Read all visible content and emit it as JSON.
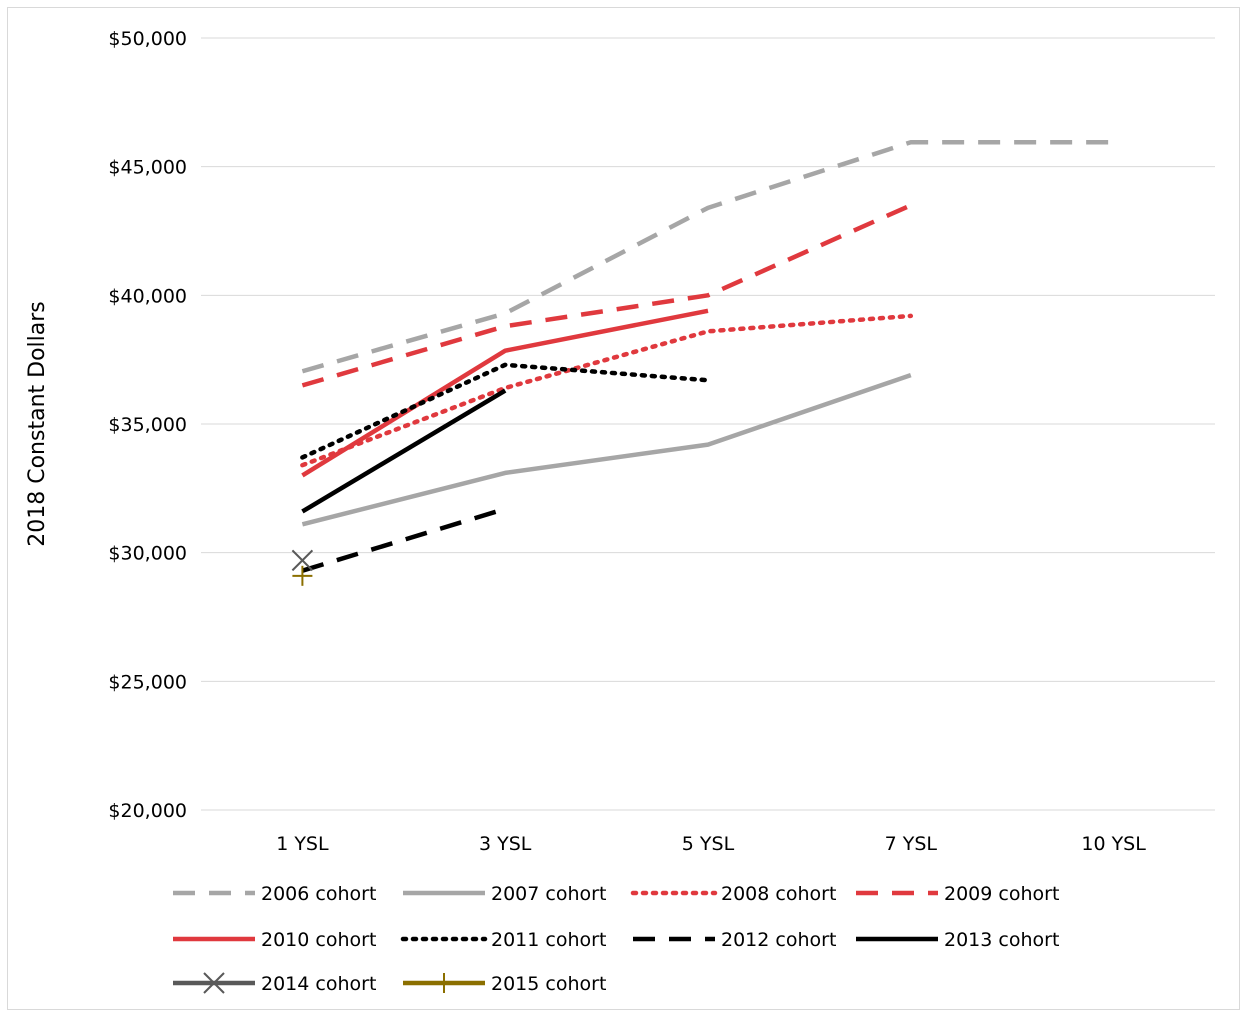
{
  "chart_data": {
    "type": "line",
    "title": "",
    "ylabel": "2018 Constant Dollars",
    "xlabel": "",
    "categories": [
      "1 YSL",
      "3 YSL",
      "5 YSL",
      "7 YSL",
      "10 YSL"
    ],
    "ylim": [
      20000,
      50000
    ],
    "yticks": [
      20000,
      25000,
      30000,
      35000,
      40000,
      45000,
      50000
    ],
    "ytick_labels": [
      "$20,000",
      "$25,000",
      "$30,000",
      "$35,000",
      "$40,000",
      "$45,000",
      "$50,000"
    ],
    "grid": true,
    "legend_position": "bottom",
    "series": [
      {
        "name": "2006 cohort",
        "values": [
          37050,
          39300,
          43400,
          45950,
          45950
        ],
        "color": "#a6a6a6",
        "style": "dashed"
      },
      {
        "name": "2007 cohort",
        "values": [
          31100,
          33100,
          34200,
          36900,
          null
        ],
        "color": "#a6a6a6",
        "style": "solid"
      },
      {
        "name": "2008 cohort",
        "values": [
          33400,
          36400,
          38600,
          39200,
          null
        ],
        "color": "#e0393e",
        "style": "dotted"
      },
      {
        "name": "2009 cohort",
        "values": [
          36500,
          38800,
          40000,
          43500,
          null
        ],
        "color": "#e0393e",
        "style": "dashed"
      },
      {
        "name": "2010 cohort",
        "values": [
          33000,
          37850,
          39400,
          null,
          null
        ],
        "color": "#e0393e",
        "style": "solid"
      },
      {
        "name": "2011 cohort",
        "values": [
          33700,
          37300,
          36700,
          null,
          null
        ],
        "color": "#000000",
        "style": "dotted"
      },
      {
        "name": "2012 cohort",
        "values": [
          29300,
          31700,
          null,
          null,
          null
        ],
        "color": "#000000",
        "style": "dashed"
      },
      {
        "name": "2013 cohort",
        "values": [
          31600,
          36300,
          null,
          null,
          null
        ],
        "color": "#000000",
        "style": "solid"
      },
      {
        "name": "2014 cohort",
        "values": [
          29700,
          null,
          null,
          null,
          null
        ],
        "color": "#595959",
        "style": "solid",
        "marker": "x"
      },
      {
        "name": "2015 cohort",
        "values": [
          29100,
          null,
          null,
          null,
          null
        ],
        "color": "#8b6f00",
        "style": "solid",
        "marker": "plus"
      }
    ]
  }
}
